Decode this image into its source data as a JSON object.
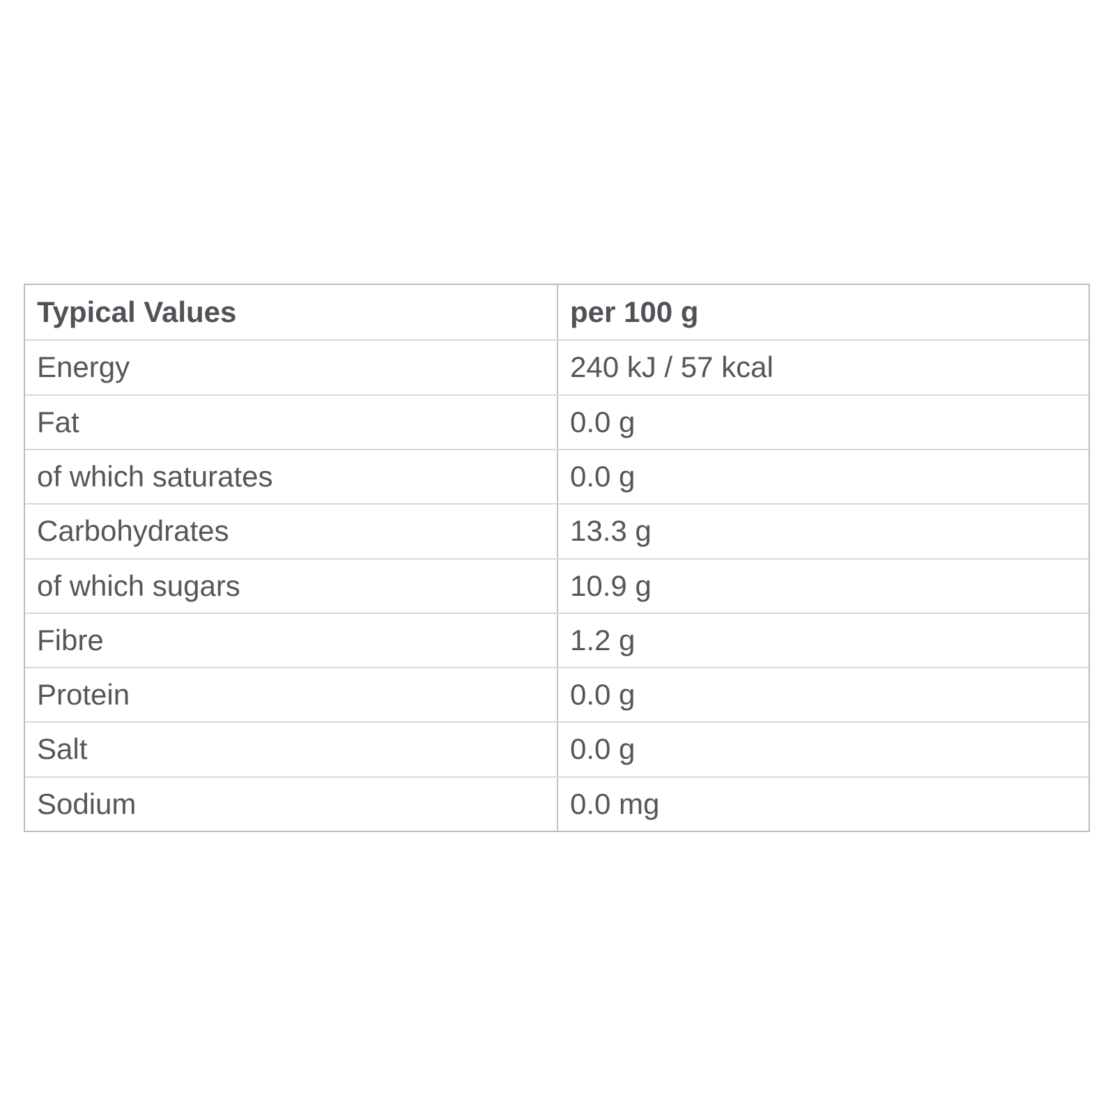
{
  "table": {
    "header": {
      "label": "Typical Values",
      "value": "per 100 g"
    },
    "rows": [
      {
        "label": "Energy",
        "value": "240 kJ / 57 kcal"
      },
      {
        "label": "Fat",
        "value": "0.0 g"
      },
      {
        "label": "of which saturates",
        "value": "0.0 g"
      },
      {
        "label": "Carbohydrates",
        "value": "13.3 g"
      },
      {
        "label": "of which sugars",
        "value": "10.9 g"
      },
      {
        "label": "Fibre",
        "value": "1.2 g"
      },
      {
        "label": "Protein",
        "value": "0.0 g"
      },
      {
        "label": "Salt",
        "value": "0.0 g"
      },
      {
        "label": "Sodium",
        "value": "0.0 mg"
      }
    ],
    "colors": {
      "text": "#54565a",
      "border_outer": "#b9bbbd",
      "border_row": "#d7d8d9",
      "border_column": "#c0c2c4",
      "background": "#ffffff"
    }
  }
}
